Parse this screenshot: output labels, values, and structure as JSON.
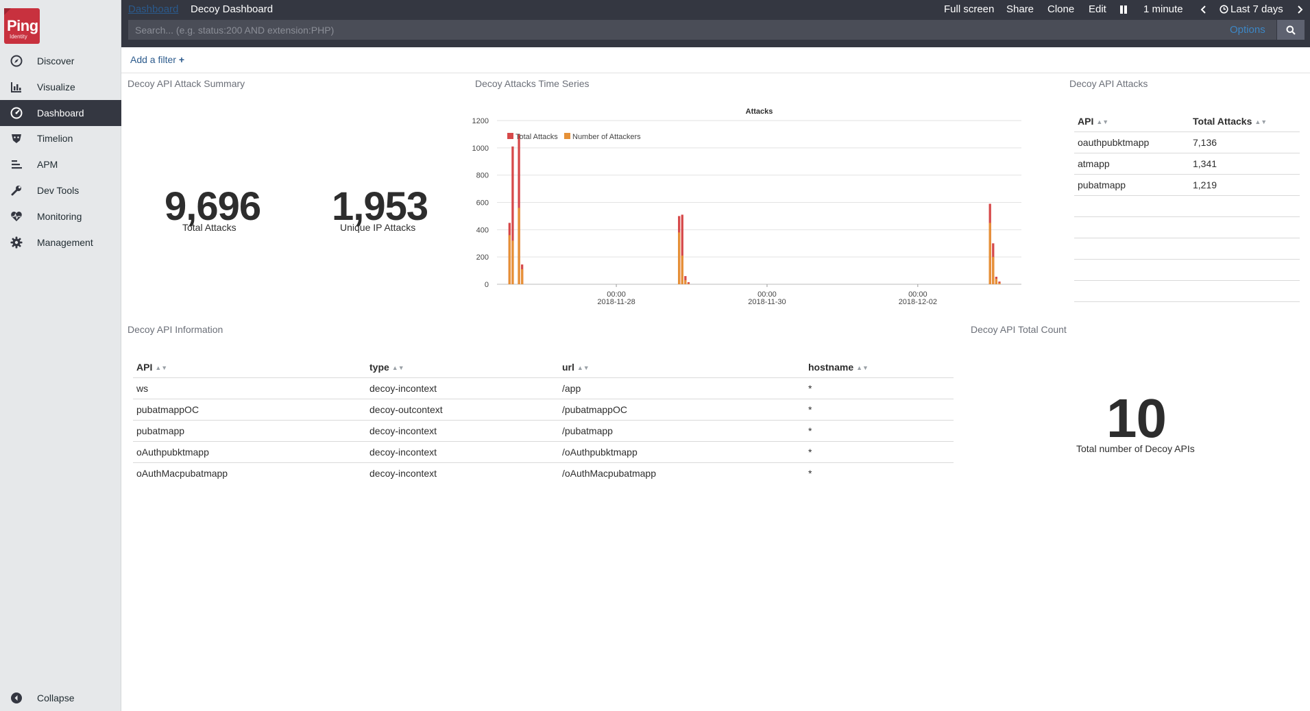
{
  "app": {
    "logo_text": "Ping",
    "logo_sub": "Identity"
  },
  "nav": [
    {
      "label": "Discover",
      "icon": "compass-icon"
    },
    {
      "label": "Visualize",
      "icon": "bar-chart-icon"
    },
    {
      "label": "Dashboard",
      "icon": "dashboard-icon",
      "active": true
    },
    {
      "label": "Timelion",
      "icon": "timelion-icon"
    },
    {
      "label": "APM",
      "icon": "apm-icon"
    },
    {
      "label": "Dev Tools",
      "icon": "wrench-icon"
    },
    {
      "label": "Monitoring",
      "icon": "heartbeat-icon"
    },
    {
      "label": "Management",
      "icon": "gear-icon"
    }
  ],
  "collapse_label": "Collapse",
  "topbar": {
    "crumb_root": "Dashboard",
    "crumb_title": "Decoy Dashboard",
    "full_screen": "Full screen",
    "share": "Share",
    "clone": "Clone",
    "edit": "Edit",
    "interval": "1 minute",
    "time_range": "Last 7 days"
  },
  "search": {
    "placeholder": "Search... (e.g. status:200 AND extension:PHP)",
    "options_label": "Options"
  },
  "filter": {
    "add_label": "Add a filter"
  },
  "panels": {
    "summary": {
      "title": "Decoy API Attack Summary",
      "metrics": [
        {
          "value": "9,696",
          "label": "Total Attacks"
        },
        {
          "value": "1,953",
          "label": "Unique IP Attacks"
        }
      ]
    },
    "timeseries": {
      "title": "Decoy Attacks Time Series"
    },
    "attacks": {
      "title": "Decoy API Attacks",
      "headers": [
        "API",
        "Total Attacks"
      ],
      "rows": [
        [
          "oauthpubktmapp",
          "7,136"
        ],
        [
          "atmapp",
          "1,341"
        ],
        [
          "pubatmapp",
          "1,219"
        ]
      ]
    },
    "info": {
      "title": "Decoy API Information",
      "headers": [
        "API",
        "type",
        "url",
        "hostname"
      ],
      "rows": [
        [
          "ws",
          "decoy-incontext",
          "/app",
          "*"
        ],
        [
          "pubatmappOC",
          "decoy-outcontext",
          "/pubatmappOC",
          "*"
        ],
        [
          "pubatmapp",
          "decoy-incontext",
          "/pubatmapp",
          "*"
        ],
        [
          "oAuthpubktmapp",
          "decoy-incontext",
          "/oAuthpubktmapp",
          "*"
        ],
        [
          "oAuthMacpubatmapp",
          "decoy-incontext",
          "/oAuthMacpubatmapp",
          "*"
        ]
      ]
    },
    "total_count": {
      "title": "Decoy API Total Count",
      "value": "10",
      "label": "Total number of Decoy APIs"
    }
  },
  "chart_data": {
    "type": "bar",
    "title": "Attacks",
    "xlabel": "",
    "ylabel": "",
    "ylim": [
      0,
      1200
    ],
    "yticks": [
      0,
      200,
      400,
      600,
      800,
      1000,
      1200
    ],
    "xticks": [
      {
        "time": "2018-11-28T00:00",
        "line1": "00:00",
        "line2": "2018-11-28"
      },
      {
        "time": "2018-11-30T00:00",
        "line1": "00:00",
        "line2": "2018-11-30"
      },
      {
        "time": "2018-12-02T00:00",
        "line1": "00:00",
        "line2": "2018-12-02"
      }
    ],
    "x_range": [
      "2018-11-26T10:00",
      "2018-12-03T09:00"
    ],
    "bar_hours": 0.6,
    "series": [
      {
        "name": "Total Attacks",
        "color": "#d6494a"
      },
      {
        "name": "Number of Attackers",
        "color": "#e69138"
      }
    ],
    "points": [
      {
        "time": "2018-11-26T14:00",
        "total": 450,
        "attackers": 360
      },
      {
        "time": "2018-11-26T15:00",
        "total": 1010,
        "attackers": 320
      },
      {
        "time": "2018-11-26T17:00",
        "total": 1100,
        "attackers": 560
      },
      {
        "time": "2018-11-26T18:00",
        "total": 145,
        "attackers": 110
      },
      {
        "time": "2018-11-28T20:00",
        "total": 500,
        "attackers": 380
      },
      {
        "time": "2018-11-28T21:00",
        "total": 510,
        "attackers": 210
      },
      {
        "time": "2018-11-28T22:00",
        "total": 60,
        "attackers": 30
      },
      {
        "time": "2018-11-28T23:00",
        "total": 15,
        "attackers": 5
      },
      {
        "time": "2018-12-02T23:00",
        "total": 590,
        "attackers": 450
      },
      {
        "time": "2018-12-03T00:00",
        "total": 300,
        "attackers": 200
      },
      {
        "time": "2018-12-03T01:00",
        "total": 55,
        "attackers": 40
      },
      {
        "time": "2018-12-03T02:00",
        "total": 20,
        "attackers": 10
      }
    ]
  },
  "colors": {
    "brand": "#c8313e",
    "topbar": "#343741",
    "link": "#3d87c5",
    "sidebar": "#e6e8ea"
  }
}
